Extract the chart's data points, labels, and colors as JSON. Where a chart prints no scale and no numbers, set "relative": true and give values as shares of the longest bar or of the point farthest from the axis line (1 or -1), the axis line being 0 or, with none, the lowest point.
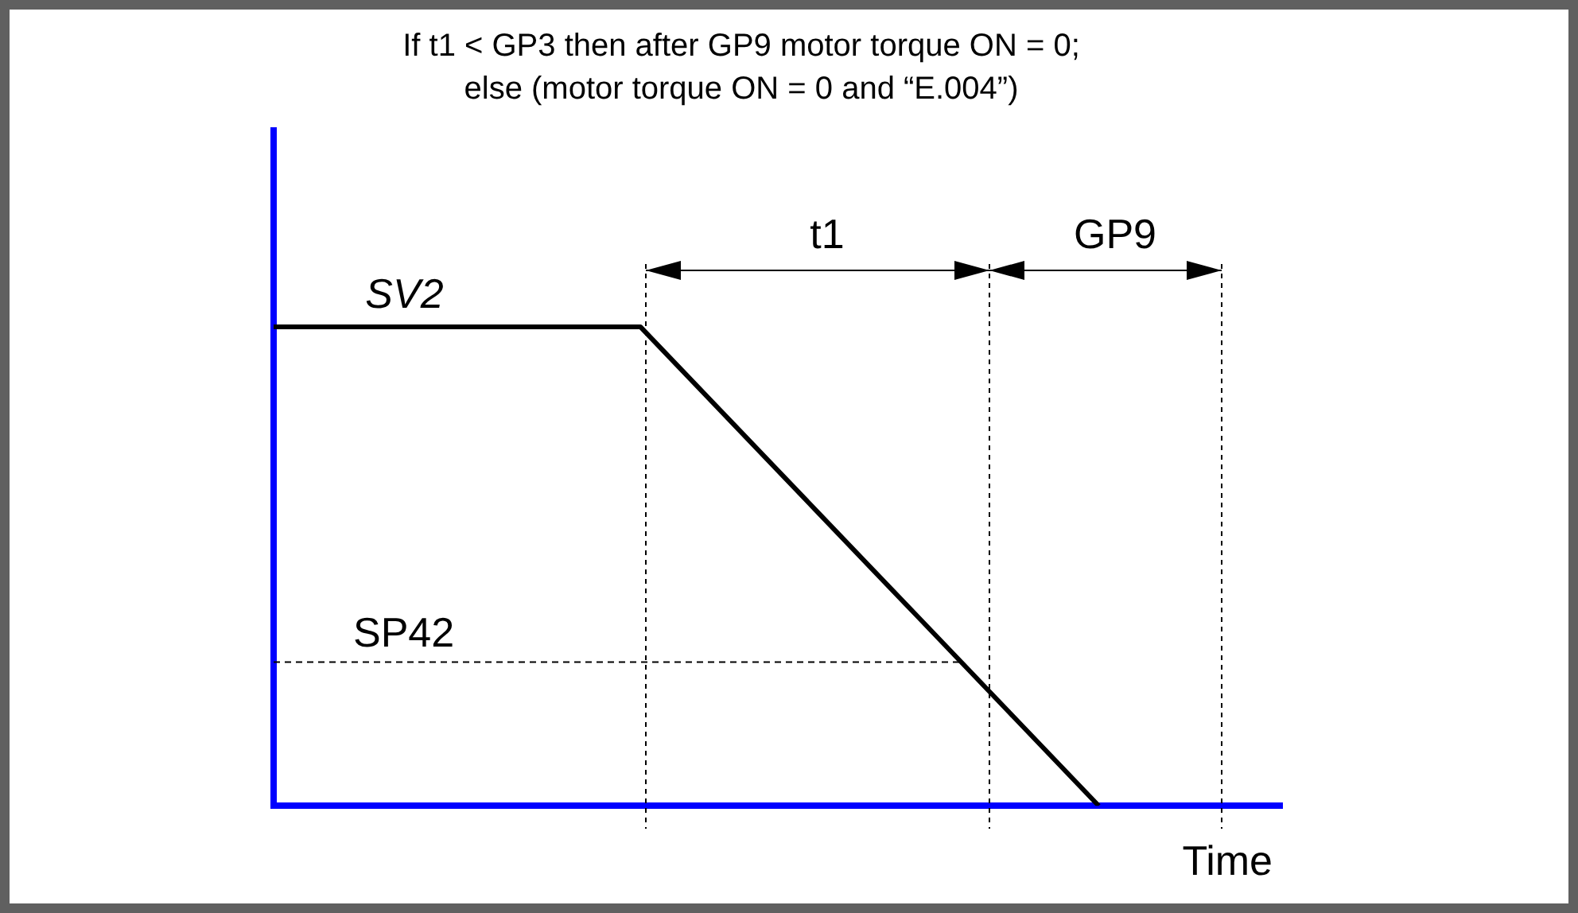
{
  "chart_data": {
    "type": "line",
    "title": "If t1 < GP3 then after GP9 motor torque ON = 0;\nelse (motor torque ON = 0 and “E.004”)",
    "xlabel": "Time",
    "relative": true,
    "categories": [
      null,
      null,
      null,
      null,
      null,
      null,
      null,
      null,
      null,
      null,
      null,
      null,
      null,
      null,
      null,
      null,
      null,
      null,
      null,
      null,
      null,
      null,
      null
    ],
    "series": [
      {
        "name": "SV2",
        "color": "#000000",
        "values": [
          1,
          1,
          1,
          1,
          1,
          1,
          1,
          1,
          1,
          0.9,
          0.8,
          0.7,
          0.6,
          0.5,
          0.4,
          0.3,
          0.2,
          0.1,
          0,
          null,
          null,
          null,
          null
        ]
      }
    ],
    "ref_lines": [
      {
        "axis": "y",
        "value": 0.3,
        "label": "SP42",
        "color": "#000000",
        "line_style": "dashed"
      }
    ],
    "annotations": [
      "t1",
      "GP9"
    ],
    "legend": false,
    "grid": false,
    "marker": "none",
    "line_style": "solid"
  }
}
